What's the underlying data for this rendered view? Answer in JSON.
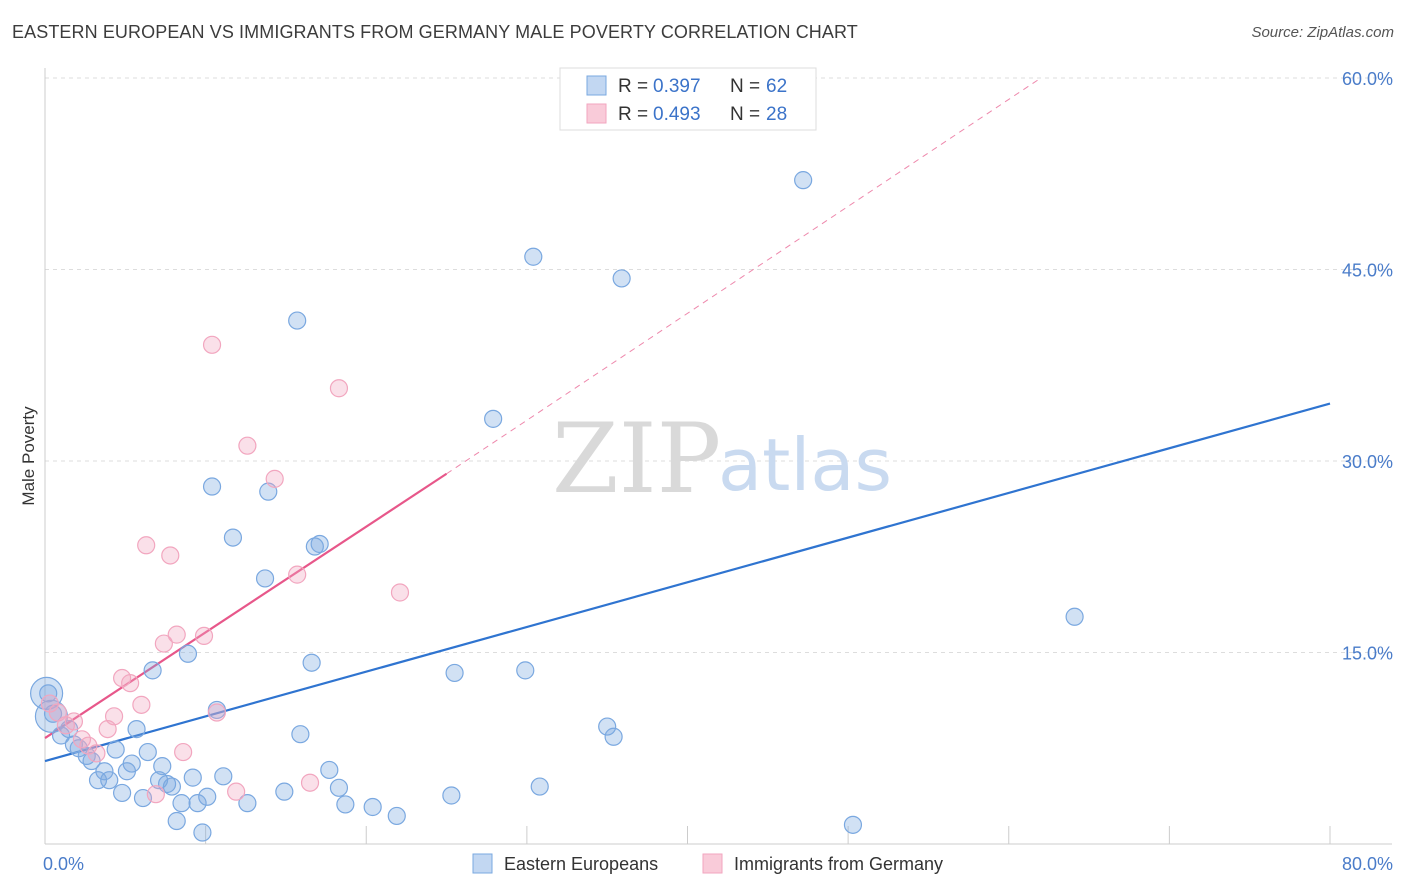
{
  "title": "EASTERN EUROPEAN VS IMMIGRANTS FROM GERMANY MALE POVERTY CORRELATION CHART",
  "source": "Source: ZipAtlas.com",
  "watermark": {
    "zip": "ZIP",
    "atlas": "atlas"
  },
  "chart_data": {
    "type": "scatter",
    "ylabel": "Male Poverty",
    "xlim": [
      0,
      80
    ],
    "ylim": [
      0,
      60
    ],
    "x_tick_labels": [
      {
        "value": 0,
        "label": "0.0%"
      },
      {
        "value": 80,
        "label": "80.0%"
      }
    ],
    "y_tick_labels": [
      {
        "value": 15,
        "label": "15.0%"
      },
      {
        "value": 30,
        "label": "30.0%"
      },
      {
        "value": 45,
        "label": "45.0%"
      },
      {
        "value": 60,
        "label": "60.0%"
      }
    ],
    "legend": {
      "position": "top-center",
      "entries": [
        {
          "r_label": "R =",
          "r_value": "0.397",
          "n_label": "N =",
          "n_value": "62"
        },
        {
          "r_label": "R =",
          "r_value": "0.493",
          "n_label": "N =",
          "n_value": "28"
        }
      ]
    },
    "series": [
      {
        "name": "Eastern Europeans",
        "color": "#7aa8e0",
        "line_color": "#2f74d0",
        "trend": {
          "x1": 0,
          "y1": 6.5,
          "x2": 80,
          "y2": 34.5
        },
        "points": [
          [
            0.2,
            11.8
          ],
          [
            0.5,
            10.2
          ],
          [
            1.0,
            8.5
          ],
          [
            1.5,
            9.0
          ],
          [
            1.8,
            7.8
          ],
          [
            2.1,
            7.5
          ],
          [
            2.6,
            6.9
          ],
          [
            2.9,
            6.5
          ],
          [
            3.3,
            5.0
          ],
          [
            3.7,
            5.7
          ],
          [
            4.0,
            5.0
          ],
          [
            4.4,
            7.4
          ],
          [
            4.8,
            4.0
          ],
          [
            5.1,
            5.7
          ],
          [
            5.4,
            6.3
          ],
          [
            5.7,
            9.0
          ],
          [
            6.1,
            3.6
          ],
          [
            6.4,
            7.2
          ],
          [
            6.7,
            13.6
          ],
          [
            7.1,
            5.0
          ],
          [
            7.3,
            6.1
          ],
          [
            7.6,
            4.7
          ],
          [
            7.9,
            4.5
          ],
          [
            8.2,
            1.8
          ],
          [
            8.5,
            3.2
          ],
          [
            8.9,
            14.9
          ],
          [
            9.2,
            5.2
          ],
          [
            9.5,
            3.2
          ],
          [
            9.8,
            0.9
          ],
          [
            10.1,
            3.7
          ],
          [
            10.4,
            28.0
          ],
          [
            10.7,
            10.5
          ],
          [
            11.1,
            5.3
          ],
          [
            11.7,
            24.0
          ],
          [
            12.6,
            3.2
          ],
          [
            13.7,
            20.8
          ],
          [
            13.9,
            27.6
          ],
          [
            14.9,
            4.1
          ],
          [
            15.7,
            41.0
          ],
          [
            15.9,
            8.6
          ],
          [
            16.6,
            14.2
          ],
          [
            16.8,
            23.3
          ],
          [
            17.1,
            23.5
          ],
          [
            17.7,
            5.8
          ],
          [
            18.3,
            4.4
          ],
          [
            18.7,
            3.1
          ],
          [
            20.4,
            2.9
          ],
          [
            21.9,
            2.2
          ],
          [
            25.3,
            3.8
          ],
          [
            25.5,
            13.4
          ],
          [
            27.9,
            33.3
          ],
          [
            29.9,
            13.6
          ],
          [
            30.4,
            46.0
          ],
          [
            30.8,
            4.5
          ],
          [
            35.0,
            9.2
          ],
          [
            35.4,
            8.4
          ],
          [
            35.9,
            44.3
          ],
          [
            47.2,
            52.0
          ],
          [
            50.3,
            1.5
          ],
          [
            64.1,
            17.8
          ]
        ],
        "large_points": [
          [
            0.1,
            11.8
          ],
          [
            0.4,
            10.0
          ]
        ]
      },
      {
        "name": "Immigrants from Germany",
        "color": "#f2a6bf",
        "line_color": "#e7578a",
        "trend": {
          "x1": 0,
          "y1": 8.3,
          "x2": 25,
          "y2": 29.0
        },
        "trend_dashed": {
          "x1": 25,
          "y1": 29.0,
          "x2": 62,
          "y2": 60.0
        },
        "points": [
          [
            0.3,
            11.0
          ],
          [
            0.8,
            10.3
          ],
          [
            1.3,
            9.3
          ],
          [
            1.8,
            9.6
          ],
          [
            2.3,
            8.2
          ],
          [
            2.7,
            7.7
          ],
          [
            3.2,
            7.1
          ],
          [
            3.9,
            9.0
          ],
          [
            4.3,
            10.0
          ],
          [
            4.8,
            13.0
          ],
          [
            5.3,
            12.6
          ],
          [
            6.0,
            10.9
          ],
          [
            6.3,
            23.4
          ],
          [
            6.9,
            3.9
          ],
          [
            7.4,
            15.7
          ],
          [
            7.8,
            22.6
          ],
          [
            8.2,
            16.4
          ],
          [
            8.6,
            7.2
          ],
          [
            9.9,
            16.3
          ],
          [
            10.4,
            39.1
          ],
          [
            10.7,
            10.3
          ],
          [
            11.9,
            4.1
          ],
          [
            12.6,
            31.2
          ],
          [
            14.3,
            28.6
          ],
          [
            15.7,
            21.1
          ],
          [
            16.5,
            4.8
          ],
          [
            18.3,
            35.7
          ],
          [
            22.1,
            19.7
          ]
        ]
      }
    ]
  }
}
